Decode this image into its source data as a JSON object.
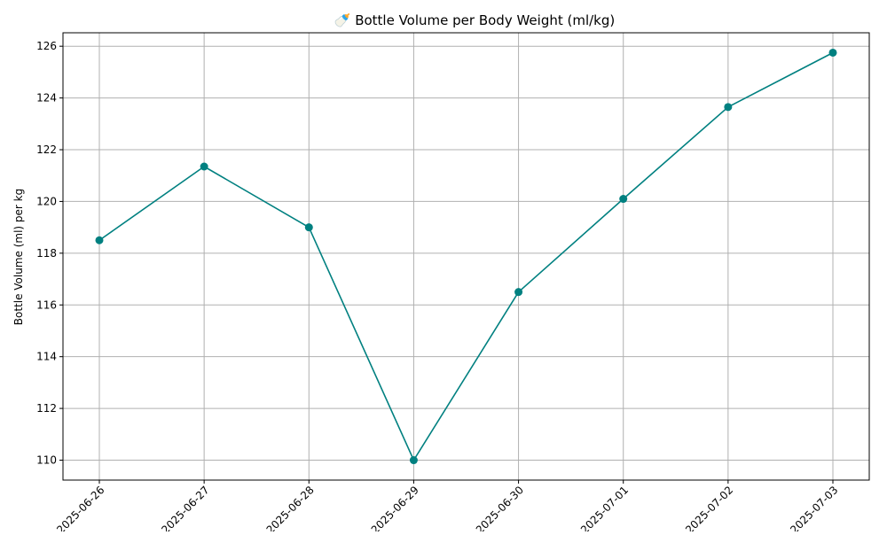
{
  "chart_data": {
    "type": "line",
    "title": "🍼 Bottle Volume per Body Weight (ml/kg)",
    "xlabel": "",
    "ylabel": "Bottle Volume (ml) per kg",
    "categories": [
      "2025-06-26",
      "2025-06-27",
      "2025-06-28",
      "2025-06-29",
      "2025-06-30",
      "2025-07-01",
      "2025-07-02",
      "2025-07-03"
    ],
    "series": [
      {
        "values": [
          118.5,
          121.35,
          119.0,
          110.0,
          116.5,
          120.1,
          123.65,
          125.75
        ],
        "color": "#008080"
      }
    ],
    "ylim": [
      109.23,
      126.52
    ],
    "yticks": [
      110,
      112,
      114,
      116,
      118,
      120,
      122,
      124,
      126
    ],
    "grid": true,
    "marker": "circle",
    "xtick_rotation": 45
  }
}
